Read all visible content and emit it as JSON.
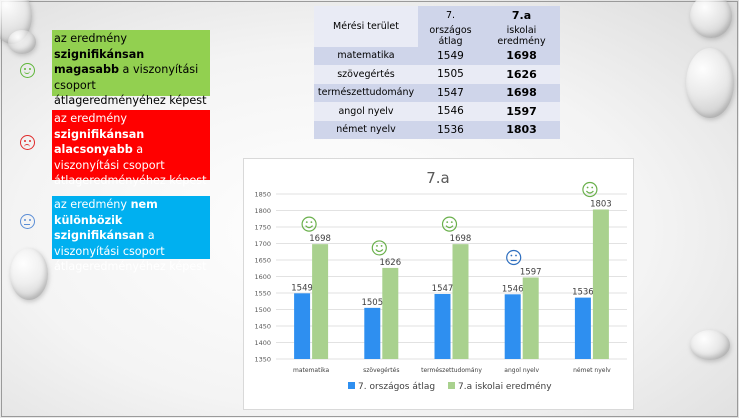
{
  "legend": {
    "green": {
      "pre": "az eredmény ",
      "strong": "szignifikánsan magasabb",
      "post": " a viszonyítási csoport átlageredményéhez képest"
    },
    "red": {
      "pre": "az eredmény ",
      "strong": "szignifikánsan alacsonyabb",
      "post": " a viszonyítási csoport átlageredményéhez képest"
    },
    "blue": {
      "pre": "az eredmény ",
      "strong": "nem különbözik szignifikánsan",
      "post": " a viszonyítási csoport átlageredményéhez képest"
    }
  },
  "table": {
    "header1": [
      "Mérési terület",
      "7.",
      "7.a"
    ],
    "header2": [
      "országos átlag",
      "iskolai eredmény"
    ],
    "rows": [
      {
        "area": "matematika",
        "national": "1549",
        "school": "1698"
      },
      {
        "area": "szövegértés",
        "national": "1505",
        "school": "1626"
      },
      {
        "area": "természettudomány",
        "national": "1547",
        "school": "1698"
      },
      {
        "area": "angol nyelv",
        "national": "1546",
        "school": "1597"
      },
      {
        "area": "német nyelv",
        "national": "1536",
        "school": "1803"
      }
    ]
  },
  "chart_data": {
    "type": "bar",
    "title": "7.a",
    "categories": [
      "matematika",
      "szövegértés",
      "természettudomány",
      "angol nyelv",
      "német nyelv"
    ],
    "series": [
      {
        "name": "7. országos átlag",
        "values": [
          1549,
          1505,
          1547,
          1546,
          1536
        ],
        "color": "#2e8ff0"
      },
      {
        "name": "7.a iskolai eredmény",
        "values": [
          1698,
          1626,
          1698,
          1597,
          1803
        ],
        "color": "#a9d18e"
      }
    ],
    "ylim": [
      1350,
      1850
    ],
    "yticks": [
      1350,
      1400,
      1450,
      1500,
      1550,
      1600,
      1650,
      1700,
      1750,
      1800,
      1850
    ],
    "grid": true,
    "legend_position": "bottom",
    "icons": [
      "smiley-icon",
      "smiley-icon",
      "smiley-icon",
      "neutral-face-icon",
      "smiley-icon"
    ]
  },
  "colors": {
    "green": "#92d050",
    "red": "#ff0000",
    "blue": "#00b0f0"
  }
}
